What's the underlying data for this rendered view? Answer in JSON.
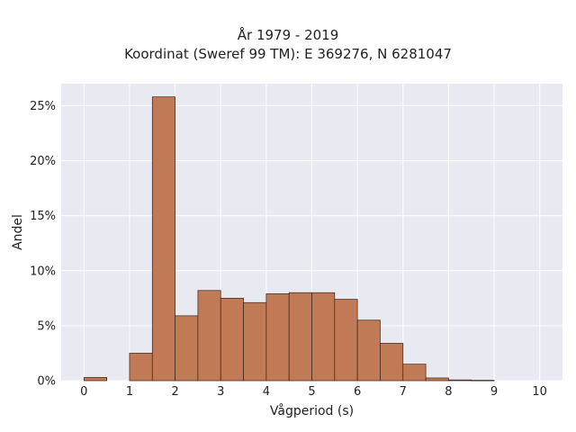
{
  "chart_data": {
    "type": "bar",
    "title": "År 1979 - 2019",
    "subtitle": "Koordinat (Sweref 99 TM): E 369276, N 6281047",
    "xlabel": "Vågperiod (s)",
    "ylabel": "Andel",
    "xlim": [
      -0.5,
      10.5
    ],
    "ylim": [
      0,
      27
    ],
    "x_ticks": [
      0,
      1,
      2,
      3,
      4,
      5,
      6,
      7,
      8,
      9,
      10
    ],
    "y_ticks": [
      0,
      5,
      10,
      15,
      20,
      25
    ],
    "y_tick_format": "percent",
    "bin_width": 0.5,
    "bins": [
      {
        "start": 0.0,
        "value": 0.3
      },
      {
        "start": 0.5,
        "value": 0.0
      },
      {
        "start": 1.0,
        "value": 2.5
      },
      {
        "start": 1.5,
        "value": 25.8
      },
      {
        "start": 2.0,
        "value": 5.9
      },
      {
        "start": 2.5,
        "value": 8.2
      },
      {
        "start": 3.0,
        "value": 7.5
      },
      {
        "start": 3.5,
        "value": 7.1
      },
      {
        "start": 4.0,
        "value": 7.9
      },
      {
        "start": 4.5,
        "value": 8.0
      },
      {
        "start": 5.0,
        "value": 8.0
      },
      {
        "start": 5.5,
        "value": 7.4
      },
      {
        "start": 6.0,
        "value": 5.5
      },
      {
        "start": 6.5,
        "value": 3.4
      },
      {
        "start": 7.0,
        "value": 1.5
      },
      {
        "start": 7.5,
        "value": 0.25
      },
      {
        "start": 8.0,
        "value": 0.07
      },
      {
        "start": 8.5,
        "value": 0.04
      }
    ],
    "grid": true,
    "colors": {
      "bar_fill": "#c07a55",
      "bar_edge": "#3a2418",
      "plot_bg": "#e9e9f1",
      "grid": "#ffffff",
      "text": "#222222"
    }
  }
}
